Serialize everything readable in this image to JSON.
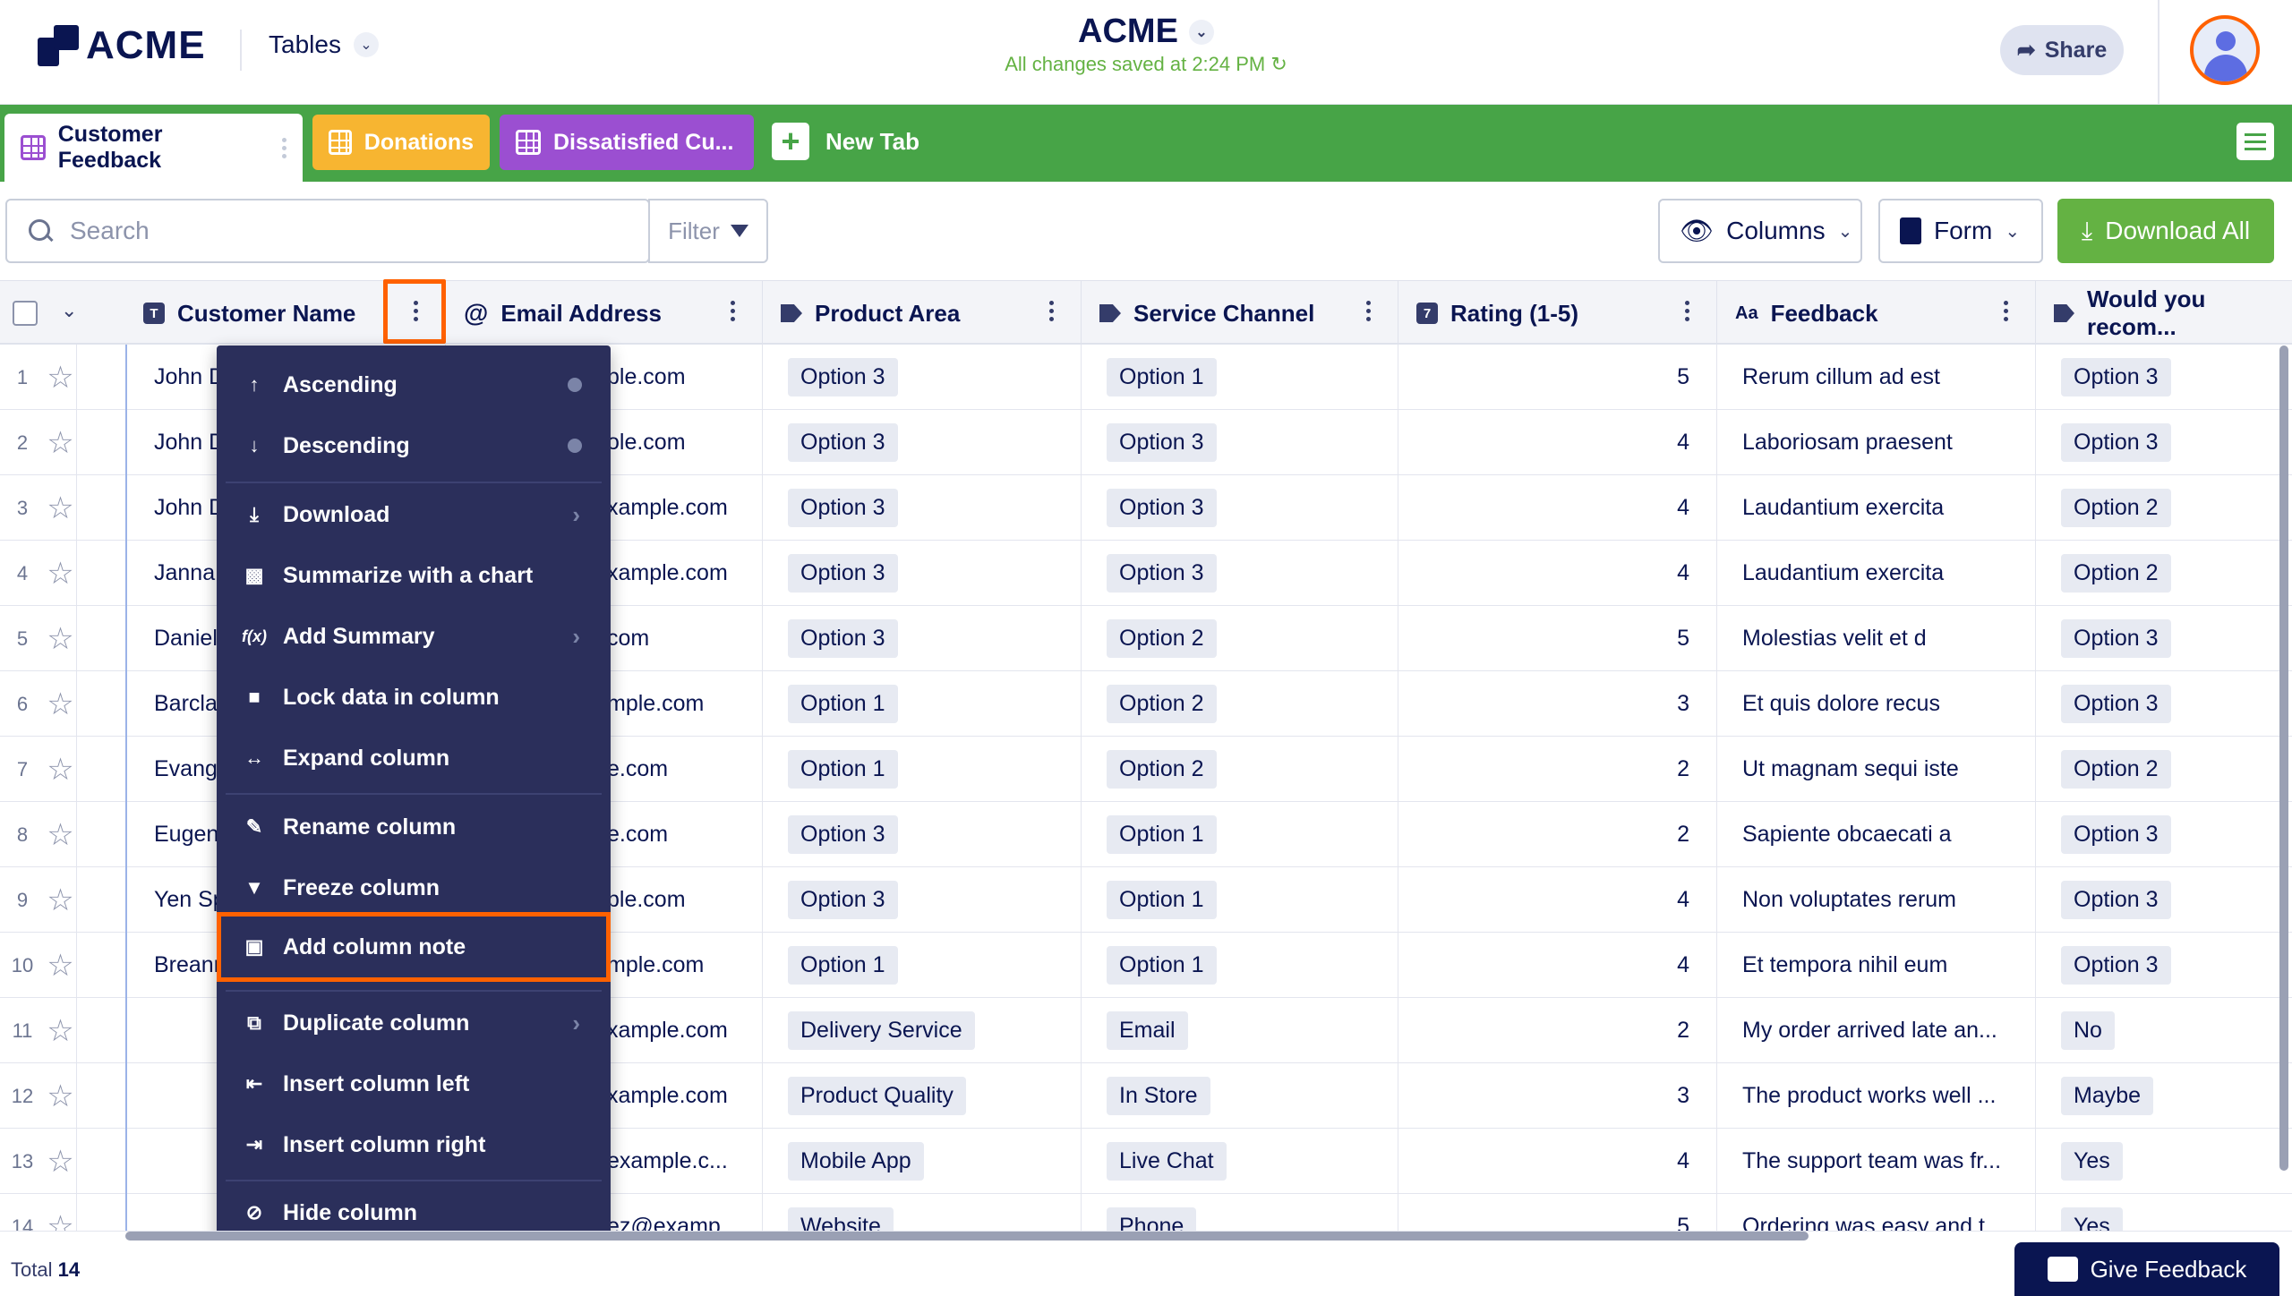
{
  "header": {
    "brand": "ACME",
    "tables_label": "Tables",
    "app_title": "ACME",
    "saved_status": "All changes saved at 2:24 PM",
    "share_label": "Share"
  },
  "tabs": [
    {
      "label": "Customer Feedback",
      "color": "#ffffff"
    },
    {
      "label": "Donations",
      "color": "#f7b531"
    },
    {
      "label": "Dissatisfied Cu...",
      "color": "#9b4fd1"
    }
  ],
  "new_tab_label": "New Tab",
  "toolbar": {
    "search_placeholder": "Search",
    "filter_label": "Filter",
    "columns_label": "Columns",
    "form_label": "Form",
    "download_all_label": "Download All"
  },
  "columns": [
    {
      "label": "Customer Name",
      "icon": "text-type-icon"
    },
    {
      "label": "Email Address",
      "icon": "at-icon"
    },
    {
      "label": "Product Area",
      "icon": "tag-icon"
    },
    {
      "label": "Service Channel",
      "icon": "tag-icon"
    },
    {
      "label": "Rating (1-5)",
      "icon": "number-icon"
    },
    {
      "label": "Feedback",
      "icon": "text-aa-icon"
    },
    {
      "label": "Would you recom...",
      "icon": "tag-icon"
    }
  ],
  "rows": [
    {
      "n": "1",
      "name": "John D",
      "email": "ple.com",
      "product": "Option 3",
      "channel": "Option 1",
      "rating": "5",
      "feedback": "Rerum cillum ad est",
      "recommend": "Option 3"
    },
    {
      "n": "2",
      "name": "John D",
      "email": "ole.com",
      "product": "Option 3",
      "channel": "Option 3",
      "rating": "4",
      "feedback": "Laboriosam praesent",
      "recommend": "Option 3"
    },
    {
      "n": "3",
      "name": "John D",
      "email": "xample.com",
      "product": "Option 3",
      "channel": "Option 3",
      "rating": "4",
      "feedback": "Laudantium exercita",
      "recommend": "Option 2"
    },
    {
      "n": "4",
      "name": "Janna",
      "email": "xample.com",
      "product": "Option 3",
      "channel": "Option 3",
      "rating": "4",
      "feedback": "Laudantium exercita",
      "recommend": "Option 2"
    },
    {
      "n": "5",
      "name": "Daniel",
      "email": "com",
      "product": "Option 3",
      "channel": "Option 2",
      "rating": "5",
      "feedback": "Molestias velit et d",
      "recommend": "Option 3"
    },
    {
      "n": "6",
      "name": "Barcla",
      "email": "mple.com",
      "product": "Option 1",
      "channel": "Option 2",
      "rating": "3",
      "feedback": "Et quis dolore recus",
      "recommend": "Option 3"
    },
    {
      "n": "7",
      "name": "Evang",
      "email": "e.com",
      "product": "Option 1",
      "channel": "Option 2",
      "rating": "2",
      "feedback": "Ut magnam sequi iste",
      "recommend": "Option 2"
    },
    {
      "n": "8",
      "name": "Eugen",
      "email": "e.com",
      "product": "Option 3",
      "channel": "Option 1",
      "rating": "2",
      "feedback": "Sapiente obcaecati a",
      "recommend": "Option 3"
    },
    {
      "n": "9",
      "name": "Yen Sp",
      "email": "ple.com",
      "product": "Option 3",
      "channel": "Option 1",
      "rating": "4",
      "feedback": "Non voluptates rerum",
      "recommend": "Option 3"
    },
    {
      "n": "10",
      "name": "Breanr",
      "email": "mple.com",
      "product": "Option 1",
      "channel": "Option 1",
      "rating": "4",
      "feedback": "Et tempora nihil eum",
      "recommend": "Option 3"
    },
    {
      "n": "11",
      "name": "",
      "email": "xample.com",
      "product": "Delivery Service",
      "channel": "Email",
      "rating": "2",
      "feedback": "My order arrived late an...",
      "recommend": "No"
    },
    {
      "n": "12",
      "name": "",
      "email": "xample.com",
      "product": "Product Quality",
      "channel": "In Store",
      "rating": "3",
      "feedback": "The product works well ...",
      "recommend": "Maybe"
    },
    {
      "n": "13",
      "name": "",
      "email": "example.c...",
      "product": "Mobile App",
      "channel": "Live Chat",
      "rating": "4",
      "feedback": "The support team was fr...",
      "recommend": "Yes"
    },
    {
      "n": "14",
      "name": "",
      "email": "ez@examp...",
      "product": "Website",
      "channel": "Phone",
      "rating": "5",
      "feedback": "Ordering was easy and t...",
      "recommend": "Yes"
    }
  ],
  "context_menu": {
    "ascending": "Ascending",
    "descending": "Descending",
    "download": "Download",
    "summarize": "Summarize with a chart",
    "add_summary": "Add Summary",
    "lock": "Lock data in column",
    "expand": "Expand column",
    "rename": "Rename column",
    "freeze": "Freeze column",
    "add_note": "Add column note",
    "duplicate": "Duplicate column",
    "insert_left": "Insert column left",
    "insert_right": "Insert column right",
    "hide": "Hide column"
  },
  "footer": {
    "total_label": "Total",
    "total_count": "14",
    "give_feedback_label": "Give Feedback"
  },
  "colors": {
    "tab_bar": "#47a447",
    "download_all": "#64b243",
    "menu_bg": "#2b2f5b",
    "highlight": "#ff6100",
    "navy": "#0a1551"
  }
}
